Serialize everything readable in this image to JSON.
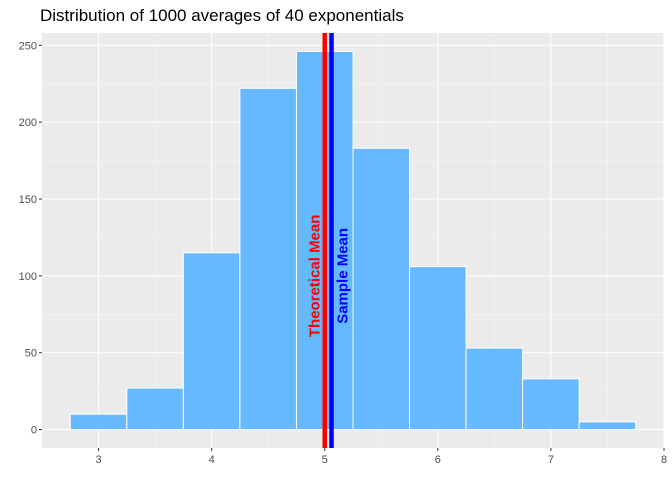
{
  "chart_data": {
    "type": "bar",
    "title": "Distribution of 1000 averages of 40 exponentials",
    "xlabel": "",
    "ylabel": "",
    "xlim": [
      2.5,
      8.0
    ],
    "ylim": [
      -12,
      258
    ],
    "x_ticks": [
      "3",
      "4",
      "5",
      "6",
      "7",
      "8"
    ],
    "y_ticks": [
      "0",
      "50",
      "100",
      "150",
      "200",
      "250"
    ],
    "grid": true,
    "bins": [
      {
        "x0": 2.75,
        "x1": 3.25,
        "count": 10
      },
      {
        "x0": 3.25,
        "x1": 3.75,
        "count": 27
      },
      {
        "x0": 3.75,
        "x1": 4.25,
        "count": 115
      },
      {
        "x0": 4.25,
        "x1": 4.75,
        "count": 222
      },
      {
        "x0": 4.75,
        "x1": 5.25,
        "count": 246
      },
      {
        "x0": 5.25,
        "x1": 5.75,
        "count": 183
      },
      {
        "x0": 5.75,
        "x1": 6.25,
        "count": 106
      },
      {
        "x0": 6.25,
        "x1": 6.75,
        "count": 53
      },
      {
        "x0": 6.75,
        "x1": 7.25,
        "count": 33
      },
      {
        "x0": 7.25,
        "x1": 7.75,
        "count": 5
      }
    ],
    "reference_lines": [
      {
        "label": "Theoretical Mean",
        "x": 5.0,
        "color": "#ff0000",
        "label_y": 100
      },
      {
        "label": "Sample Mean",
        "x": 5.06,
        "color": "#0000ff",
        "label_y": 100
      }
    ],
    "colors": {
      "bar_fill": "#66b8ff",
      "bar_stroke": "#ffffff",
      "panel_background": "#ebebeb",
      "grid_major": "#ffffff",
      "grid_minor": "#f5f5f5"
    }
  }
}
